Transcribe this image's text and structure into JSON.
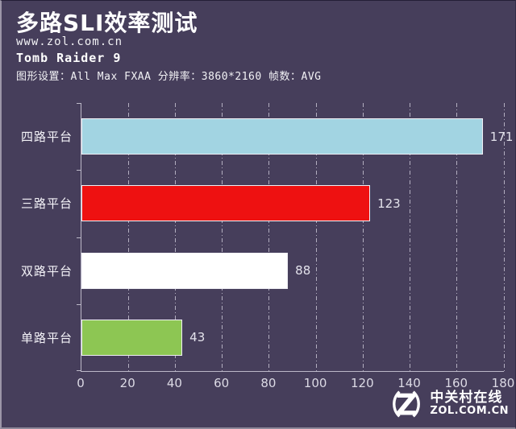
{
  "header": {
    "title": "多路SLI效率测试",
    "website": "www.zol.com.cn",
    "game_title": "Tomb Raider 9",
    "settings_line": "图形设置：All Max FXAA 分辨率：3860*2160 帧数：AVG"
  },
  "chart_data": {
    "type": "bar",
    "orientation": "horizontal",
    "title": "多路SLI效率测试",
    "subtitle": "Tomb Raider 9",
    "categories": [
      "四路平台",
      "三路平台",
      "双路平台",
      "单路平台"
    ],
    "values": [
      171,
      123,
      88,
      43
    ],
    "bar_colors": [
      "#a2d4e2",
      "#ee1111",
      "#ffffff",
      "#8dc653"
    ],
    "xlabel": "",
    "ylabel": "",
    "xlim": [
      0,
      180
    ],
    "xticks": [
      0,
      20,
      40,
      60,
      80,
      100,
      120,
      140,
      160,
      180
    ],
    "grid": true,
    "legend": "none"
  },
  "watermark": {
    "logo_letter": "Z",
    "brand_cn": "中关村在线",
    "brand_url": "ZOL.COM.CN"
  },
  "colors": {
    "background": "#463e5b",
    "axis": "#bcb8c8",
    "grid": "#c6c2d2",
    "text": "#ffffff",
    "value_text": "#e4e3ec",
    "bar_border": "#f0eff5"
  }
}
